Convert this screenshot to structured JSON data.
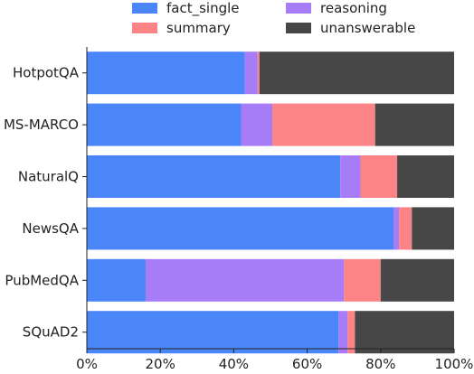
{
  "chart_data": {
    "type": "bar",
    "orientation": "horizontal",
    "stacked": true,
    "title": "",
    "xlabel": "",
    "ylabel": "",
    "xlim": [
      0,
      100
    ],
    "x_ticks": [
      "0%",
      "20%",
      "40%",
      "60%",
      "80%",
      "100%"
    ],
    "x_tick_values": [
      0,
      20,
      40,
      60,
      80,
      100
    ],
    "grid": false,
    "legend_position": "top",
    "categories": [
      "HotpotQA",
      "MS-MARCO",
      "NaturalQ",
      "NewsQA",
      "PubMedQA",
      "SQuAD2"
    ],
    "series": [
      {
        "name": "fact_single",
        "color": "#4A86F7",
        "values": [
          43,
          42,
          69,
          83.5,
          16,
          68.5
        ]
      },
      {
        "name": "reasoning",
        "color": "#A77CF7",
        "values": [
          3.5,
          8.5,
          5.5,
          1.5,
          54,
          2.5
        ]
      },
      {
        "name": "summary",
        "color": "#FC8486",
        "values": [
          0.5,
          28,
          10,
          3.5,
          10,
          2
        ]
      },
      {
        "name": "unanswerable",
        "color": "#474747",
        "values": [
          53,
          21.5,
          15.5,
          11.5,
          20,
          27
        ]
      }
    ]
  }
}
